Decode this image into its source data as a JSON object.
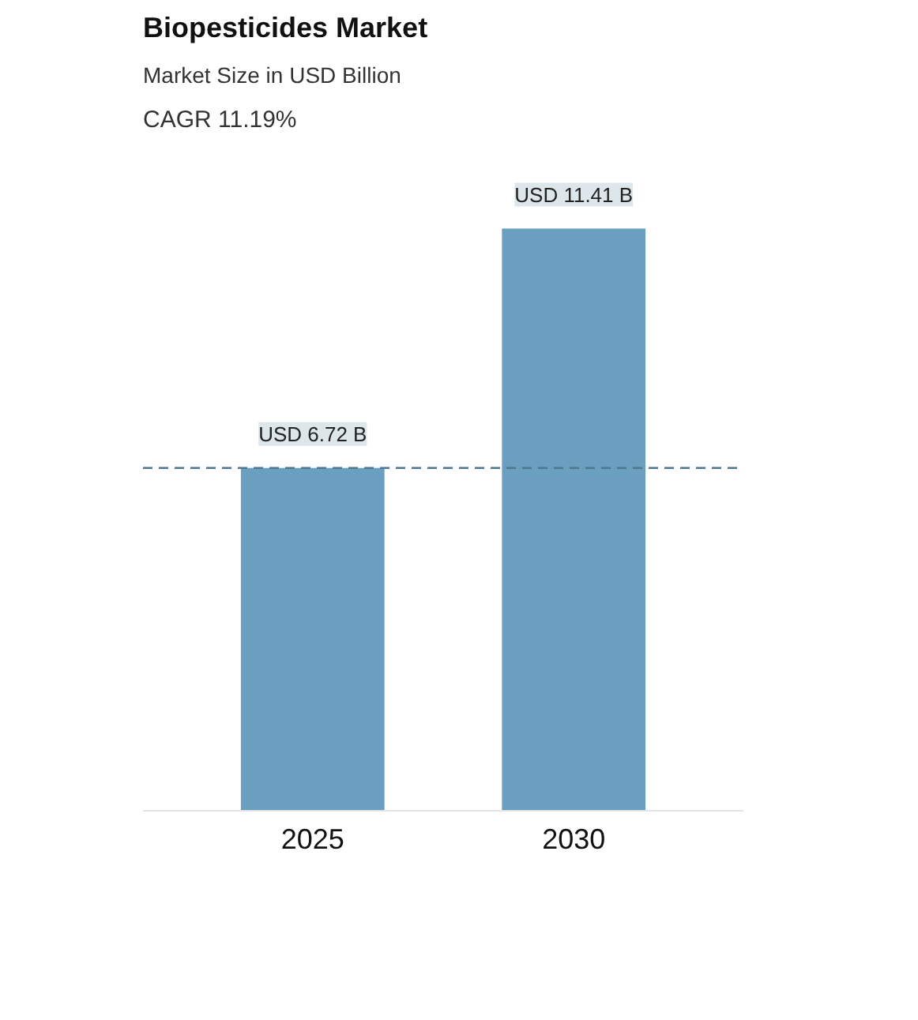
{
  "chart_data": {
    "type": "bar",
    "title": "Biopesticides Market",
    "subtitle": "Market Size in USD Billion",
    "annotations": [
      "CAGR 11.19%"
    ],
    "categories": [
      "2025",
      "2030"
    ],
    "values": [
      6.72,
      11.41
    ],
    "color": "#6a9fbf",
    "value_labels": [
      "USD 6.72 B",
      "USD 11.41 B"
    ],
    "ref_lines": [
      {
        "axis": "y",
        "value": 6.72,
        "color": "#4f7690",
        "line_style": "dashed"
      }
    ]
  }
}
